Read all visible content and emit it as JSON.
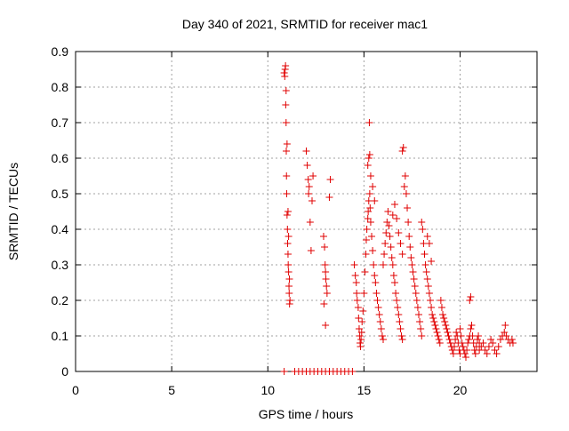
{
  "chart_data": {
    "type": "scatter",
    "title": "Day 340 of 2021, SRMTID for receiver mac1",
    "xlabel": "GPS time / hours",
    "ylabel": "SRMTID / TECUs",
    "xlim": [
      0,
      24
    ],
    "ylim": [
      0,
      0.9
    ],
    "xticks": [
      0,
      5,
      10,
      15,
      20
    ],
    "xtick_labels": [
      "0",
      "5",
      "10",
      "15",
      "20"
    ],
    "yticks": [
      0,
      0.1,
      0.2,
      0.3,
      0.4,
      0.5,
      0.6,
      0.7,
      0.8,
      0.9
    ],
    "ytick_labels": [
      "0",
      "0.1",
      "0.2",
      "0.3",
      "0.4",
      "0.5",
      "0.6",
      "0.7",
      "0.8",
      "0.9"
    ],
    "grid": true,
    "marker_color": "#e00000",
    "series": [
      {
        "name": "mac1",
        "marker": "plus",
        "points": [
          [
            10.85,
            0.84
          ],
          [
            10.88,
            0.83
          ],
          [
            10.9,
            0.85
          ],
          [
            10.92,
            0.86
          ],
          [
            10.93,
            0.75
          ],
          [
            10.95,
            0.7
          ],
          [
            10.96,
            0.62
          ],
          [
            10.97,
            0.55
          ],
          [
            10.98,
            0.5
          ],
          [
            11.0,
            0.44
          ],
          [
            11.02,
            0.4
          ],
          [
            11.03,
            0.36
          ],
          [
            11.05,
            0.33
          ],
          [
            11.06,
            0.3
          ],
          [
            11.08,
            0.28
          ],
          [
            11.1,
            0.24
          ],
          [
            11.11,
            0.22
          ],
          [
            11.13,
            0.19
          ],
          [
            11.15,
            0.2
          ],
          [
            11.0,
            0.64
          ],
          [
            10.95,
            0.79
          ],
          [
            11.05,
            0.45
          ],
          [
            11.08,
            0.38
          ],
          [
            11.12,
            0.26
          ],
          [
            12.0,
            0.62
          ],
          [
            12.05,
            0.58
          ],
          [
            12.1,
            0.54
          ],
          [
            12.12,
            0.5
          ],
          [
            12.15,
            0.52
          ],
          [
            12.2,
            0.42
          ],
          [
            12.25,
            0.34
          ],
          [
            12.3,
            0.48
          ],
          [
            12.35,
            0.55
          ],
          [
            12.9,
            0.38
          ],
          [
            12.95,
            0.35
          ],
          [
            12.98,
            0.3
          ],
          [
            13.0,
            0.28
          ],
          [
            13.02,
            0.26
          ],
          [
            13.05,
            0.24
          ],
          [
            13.08,
            0.22
          ],
          [
            12.92,
            0.19
          ],
          [
            13.0,
            0.13
          ],
          [
            13.2,
            0.49
          ],
          [
            13.25,
            0.54
          ],
          [
            14.5,
            0.3
          ],
          [
            14.55,
            0.27
          ],
          [
            14.6,
            0.25
          ],
          [
            14.62,
            0.22
          ],
          [
            14.65,
            0.2
          ],
          [
            14.7,
            0.18
          ],
          [
            14.72,
            0.15
          ],
          [
            14.75,
            0.12
          ],
          [
            14.78,
            0.1
          ],
          [
            14.8,
            0.08
          ],
          [
            14.82,
            0.07
          ],
          [
            14.85,
            0.09
          ],
          [
            14.88,
            0.11
          ],
          [
            14.9,
            0.14
          ],
          [
            14.95,
            0.17
          ],
          [
            15.0,
            0.22
          ],
          [
            15.05,
            0.28
          ],
          [
            15.1,
            0.33
          ],
          [
            15.12,
            0.37
          ],
          [
            15.15,
            0.4
          ],
          [
            15.2,
            0.43
          ],
          [
            15.22,
            0.45
          ],
          [
            15.25,
            0.48
          ],
          [
            15.3,
            0.5
          ],
          [
            15.32,
            0.46
          ],
          [
            15.35,
            0.42
          ],
          [
            15.4,
            0.38
          ],
          [
            15.45,
            0.34
          ],
          [
            15.5,
            0.3
          ],
          [
            15.55,
            0.27
          ],
          [
            15.6,
            0.25
          ],
          [
            15.65,
            0.22
          ],
          [
            15.7,
            0.2
          ],
          [
            15.75,
            0.18
          ],
          [
            15.8,
            0.16
          ],
          [
            15.85,
            0.14
          ],
          [
            15.9,
            0.12
          ],
          [
            15.95,
            0.1
          ],
          [
            16.0,
            0.09
          ],
          [
            15.2,
            0.58
          ],
          [
            15.25,
            0.6
          ],
          [
            15.3,
            0.61
          ],
          [
            15.28,
            0.7
          ],
          [
            15.35,
            0.55
          ],
          [
            15.45,
            0.52
          ],
          [
            15.55,
            0.48
          ],
          [
            16.0,
            0.3
          ],
          [
            16.05,
            0.33
          ],
          [
            16.1,
            0.36
          ],
          [
            16.15,
            0.39
          ],
          [
            16.2,
            0.42
          ],
          [
            16.25,
            0.45
          ],
          [
            16.3,
            0.41
          ],
          [
            16.35,
            0.38
          ],
          [
            16.4,
            0.35
          ],
          [
            16.45,
            0.32
          ],
          [
            16.5,
            0.3
          ],
          [
            16.55,
            0.27
          ],
          [
            16.6,
            0.25
          ],
          [
            16.65,
            0.22
          ],
          [
            16.7,
            0.2
          ],
          [
            16.75,
            0.18
          ],
          [
            16.8,
            0.16
          ],
          [
            16.85,
            0.14
          ],
          [
            16.9,
            0.12
          ],
          [
            16.95,
            0.1
          ],
          [
            17.0,
            0.09
          ],
          [
            16.5,
            0.44
          ],
          [
            16.6,
            0.47
          ],
          [
            16.7,
            0.43
          ],
          [
            16.8,
            0.39
          ],
          [
            16.9,
            0.36
          ],
          [
            17.0,
            0.33
          ],
          [
            17.0,
            0.62
          ],
          [
            17.05,
            0.63
          ],
          [
            17.1,
            0.52
          ],
          [
            17.15,
            0.55
          ],
          [
            17.2,
            0.5
          ],
          [
            17.25,
            0.46
          ],
          [
            17.3,
            0.42
          ],
          [
            17.35,
            0.38
          ],
          [
            17.4,
            0.35
          ],
          [
            17.45,
            0.32
          ],
          [
            17.5,
            0.3
          ],
          [
            17.55,
            0.28
          ],
          [
            17.6,
            0.26
          ],
          [
            17.65,
            0.24
          ],
          [
            17.7,
            0.22
          ],
          [
            17.75,
            0.2
          ],
          [
            17.8,
            0.18
          ],
          [
            17.85,
            0.16
          ],
          [
            17.9,
            0.14
          ],
          [
            17.95,
            0.12
          ],
          [
            18.0,
            0.1
          ],
          [
            18.0,
            0.42
          ],
          [
            18.05,
            0.4
          ],
          [
            18.1,
            0.36
          ],
          [
            18.15,
            0.33
          ],
          [
            18.2,
            0.3
          ],
          [
            18.25,
            0.28
          ],
          [
            18.3,
            0.26
          ],
          [
            18.35,
            0.24
          ],
          [
            18.4,
            0.22
          ],
          [
            18.45,
            0.2
          ],
          [
            18.5,
            0.18
          ],
          [
            18.55,
            0.16
          ],
          [
            18.6,
            0.15
          ],
          [
            18.65,
            0.14
          ],
          [
            18.7,
            0.13
          ],
          [
            18.75,
            0.12
          ],
          [
            18.8,
            0.11
          ],
          [
            18.85,
            0.1
          ],
          [
            18.9,
            0.09
          ],
          [
            18.95,
            0.08
          ],
          [
            18.3,
            0.38
          ],
          [
            18.4,
            0.36
          ],
          [
            18.5,
            0.31
          ],
          [
            19.0,
            0.2
          ],
          [
            19.05,
            0.18
          ],
          [
            19.1,
            0.16
          ],
          [
            19.15,
            0.15
          ],
          [
            19.2,
            0.14
          ],
          [
            19.25,
            0.13
          ],
          [
            19.3,
            0.12
          ],
          [
            19.35,
            0.11
          ],
          [
            19.4,
            0.1
          ],
          [
            19.45,
            0.09
          ],
          [
            19.5,
            0.08
          ],
          [
            19.55,
            0.07
          ],
          [
            19.6,
            0.06
          ],
          [
            19.65,
            0.05
          ],
          [
            19.7,
            0.07
          ],
          [
            19.75,
            0.09
          ],
          [
            19.8,
            0.11
          ],
          [
            19.85,
            0.1
          ],
          [
            19.9,
            0.08
          ],
          [
            19.95,
            0.06
          ],
          [
            20.0,
            0.05
          ],
          [
            20.0,
            0.12
          ],
          [
            20.05,
            0.1
          ],
          [
            20.1,
            0.08
          ],
          [
            20.15,
            0.07
          ],
          [
            20.2,
            0.06
          ],
          [
            20.25,
            0.05
          ],
          [
            20.3,
            0.04
          ],
          [
            20.35,
            0.06
          ],
          [
            20.4,
            0.08
          ],
          [
            20.45,
            0.09
          ],
          [
            20.5,
            0.1
          ],
          [
            20.55,
            0.12
          ],
          [
            20.6,
            0.13
          ],
          [
            20.5,
            0.2
          ],
          [
            20.55,
            0.21
          ],
          [
            20.65,
            0.1
          ],
          [
            20.7,
            0.08
          ],
          [
            20.75,
            0.06
          ],
          [
            20.8,
            0.05
          ],
          [
            20.85,
            0.07
          ],
          [
            20.9,
            0.09
          ],
          [
            20.95,
            0.1
          ],
          [
            21.0,
            0.08
          ],
          [
            21.0,
            0.06
          ],
          [
            21.1,
            0.07
          ],
          [
            21.2,
            0.08
          ],
          [
            21.3,
            0.06
          ],
          [
            21.4,
            0.05
          ],
          [
            21.5,
            0.07
          ],
          [
            21.6,
            0.09
          ],
          [
            21.7,
            0.08
          ],
          [
            21.8,
            0.06
          ],
          [
            21.9,
            0.05
          ],
          [
            22.0,
            0.07
          ],
          [
            22.1,
            0.09
          ],
          [
            22.2,
            0.1
          ],
          [
            22.3,
            0.11
          ],
          [
            22.35,
            0.13
          ],
          [
            22.4,
            0.1
          ],
          [
            22.5,
            0.09
          ],
          [
            22.6,
            0.08
          ],
          [
            22.7,
            0.09
          ],
          [
            22.75,
            0.08
          ],
          [
            10.85,
            0.0
          ],
          [
            11.4,
            0.0
          ],
          [
            11.6,
            0.0
          ],
          [
            11.8,
            0.0
          ],
          [
            12.0,
            0.0
          ],
          [
            12.2,
            0.0
          ],
          [
            12.4,
            0.0
          ],
          [
            12.6,
            0.0
          ],
          [
            12.8,
            0.0
          ],
          [
            13.0,
            0.0
          ],
          [
            13.2,
            0.0
          ],
          [
            13.4,
            0.0
          ],
          [
            13.6,
            0.0
          ],
          [
            13.8,
            0.0
          ],
          [
            14.0,
            0.0
          ],
          [
            14.2,
            0.0
          ],
          [
            14.4,
            0.0
          ]
        ]
      }
    ]
  }
}
